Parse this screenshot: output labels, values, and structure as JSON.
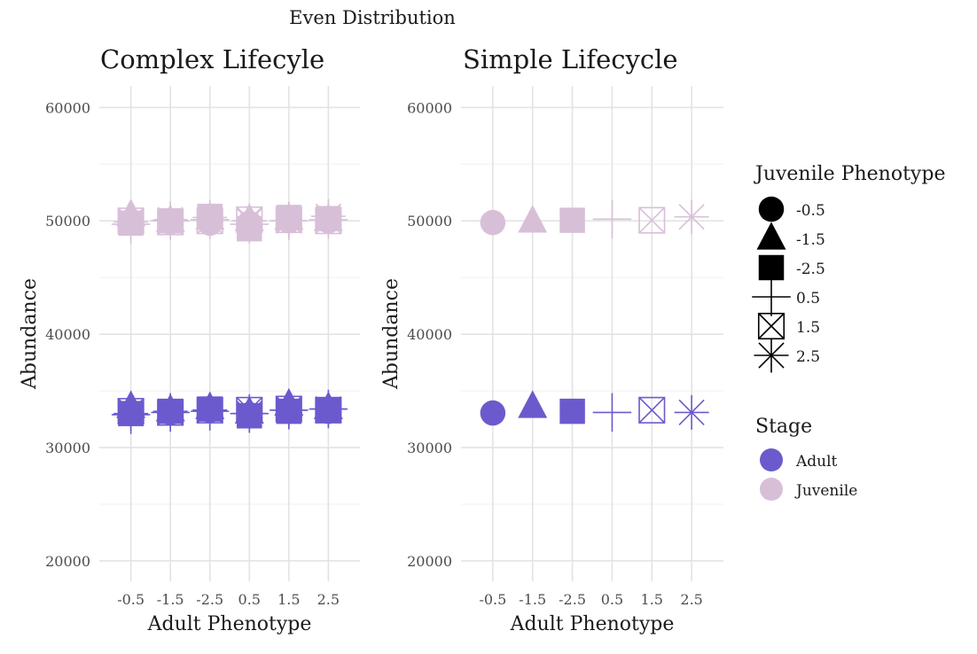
{
  "figure": {
    "title": "Even Distribution"
  },
  "legend": {
    "shape_title": "Juvenile Phenotype",
    "shape_items": [
      {
        "label": "-0.5",
        "shape": "circle"
      },
      {
        "label": "-1.5",
        "shape": "triangle"
      },
      {
        "label": "-2.5",
        "shape": "square"
      },
      {
        "label": "0.5",
        "shape": "plus"
      },
      {
        "label": "1.5",
        "shape": "square-cross"
      },
      {
        "label": "2.5",
        "shape": "asterisk"
      }
    ],
    "color_title": "Stage",
    "color_items": [
      {
        "label": "Adult",
        "color": "#6a5acd"
      },
      {
        "label": "Juvenile",
        "color": "#d8bfd8"
      }
    ]
  },
  "chart_data": [
    {
      "type": "scatter",
      "title": "Complex Lifecyle",
      "xlabel": "Adult Phenotype",
      "ylabel": "Abundance",
      "categories": [
        "-0.5",
        "-1.5",
        "-2.5",
        "0.5",
        "1.5",
        "2.5"
      ],
      "y_ticks": [
        20000,
        30000,
        40000,
        50000,
        60000
      ],
      "y_tick_labels": [
        "20000",
        "30000",
        "40000",
        "50000",
        "60000"
      ],
      "ylim": [
        18200,
        61900
      ],
      "grid": true,
      "note": "Each adult phenotype category has points for all six juvenile phenotypes, overlapping",
      "series": [
        {
          "name": "Juvenile",
          "color": "#d8bfd8",
          "points": [
            {
              "x": "-0.5",
              "shape": "circle",
              "y": 49900
            },
            {
              "x": "-0.5",
              "shape": "triangle",
              "y": 50500
            },
            {
              "x": "-0.5",
              "shape": "square",
              "y": 49800
            },
            {
              "x": "-0.5",
              "shape": "plus",
              "y": 49700
            },
            {
              "x": "-0.5",
              "shape": "square-cross",
              "y": 50000
            },
            {
              "x": "-0.5",
              "shape": "asterisk",
              "y": 49900
            },
            {
              "x": "-1.5",
              "shape": "circle",
              "y": 49900
            },
            {
              "x": "-1.5",
              "shape": "triangle",
              "y": 50000
            },
            {
              "x": "-1.5",
              "shape": "square",
              "y": 50000
            },
            {
              "x": "-1.5",
              "shape": "plus",
              "y": 50000
            },
            {
              "x": "-1.5",
              "shape": "square-cross",
              "y": 49900
            },
            {
              "x": "-1.5",
              "shape": "asterisk",
              "y": 50100
            },
            {
              "x": "-2.5",
              "shape": "circle",
              "y": 49800
            },
            {
              "x": "-2.5",
              "shape": "triangle",
              "y": 50200
            },
            {
              "x": "-2.5",
              "shape": "square",
              "y": 50400
            },
            {
              "x": "-2.5",
              "shape": "plus",
              "y": 50100
            },
            {
              "x": "-2.5",
              "shape": "square-cross",
              "y": 50000
            },
            {
              "x": "-2.5",
              "shape": "asterisk",
              "y": 50300
            },
            {
              "x": "0.5",
              "shape": "circle",
              "y": 49800
            },
            {
              "x": "0.5",
              "shape": "triangle",
              "y": 50100
            },
            {
              "x": "0.5",
              "shape": "square",
              "y": 49300
            },
            {
              "x": "0.5",
              "shape": "plus",
              "y": 49700
            },
            {
              "x": "0.5",
              "shape": "square-cross",
              "y": 50100
            },
            {
              "x": "0.5",
              "shape": "asterisk",
              "y": 50000
            },
            {
              "x": "1.5",
              "shape": "circle",
              "y": 50000
            },
            {
              "x": "1.5",
              "shape": "triangle",
              "y": 50200
            },
            {
              "x": "1.5",
              "shape": "square",
              "y": 50300
            },
            {
              "x": "1.5",
              "shape": "plus",
              "y": 50000
            },
            {
              "x": "1.5",
              "shape": "square-cross",
              "y": 50100
            },
            {
              "x": "1.5",
              "shape": "asterisk",
              "y": 50000
            },
            {
              "x": "2.5",
              "shape": "circle",
              "y": 50000
            },
            {
              "x": "2.5",
              "shape": "triangle",
              "y": 50100
            },
            {
              "x": "2.5",
              "shape": "square",
              "y": 50200
            },
            {
              "x": "2.5",
              "shape": "plus",
              "y": 50100
            },
            {
              "x": "2.5",
              "shape": "square-cross",
              "y": 50000
            },
            {
              "x": "2.5",
              "shape": "asterisk",
              "y": 50400
            }
          ]
        },
        {
          "name": "Adult",
          "color": "#6a5acd",
          "points": [
            {
              "x": "-0.5",
              "shape": "circle",
              "y": 33100
            },
            {
              "x": "-0.5",
              "shape": "triangle",
              "y": 33600
            },
            {
              "x": "-0.5",
              "shape": "square",
              "y": 33000
            },
            {
              "x": "-0.5",
              "shape": "plus",
              "y": 32900
            },
            {
              "x": "-0.5",
              "shape": "square-cross",
              "y": 33200
            },
            {
              "x": "-0.5",
              "shape": "asterisk",
              "y": 33000
            },
            {
              "x": "-1.5",
              "shape": "circle",
              "y": 33100
            },
            {
              "x": "-1.5",
              "shape": "triangle",
              "y": 33300
            },
            {
              "x": "-1.5",
              "shape": "square",
              "y": 33200
            },
            {
              "x": "-1.5",
              "shape": "plus",
              "y": 33100
            },
            {
              "x": "-1.5",
              "shape": "square-cross",
              "y": 33100
            },
            {
              "x": "-1.5",
              "shape": "asterisk",
              "y": 33200
            },
            {
              "x": "-2.5",
              "shape": "circle",
              "y": 33300
            },
            {
              "x": "-2.5",
              "shape": "triangle",
              "y": 33500
            },
            {
              "x": "-2.5",
              "shape": "square",
              "y": 33400
            },
            {
              "x": "-2.5",
              "shape": "plus",
              "y": 33200
            },
            {
              "x": "-2.5",
              "shape": "square-cross",
              "y": 33300
            },
            {
              "x": "-2.5",
              "shape": "asterisk",
              "y": 33300
            },
            {
              "x": "0.5",
              "shape": "circle",
              "y": 32900
            },
            {
              "x": "0.5",
              "shape": "triangle",
              "y": 33100
            },
            {
              "x": "0.5",
              "shape": "square",
              "y": 32800
            },
            {
              "x": "0.5",
              "shape": "plus",
              "y": 33000
            },
            {
              "x": "0.5",
              "shape": "square-cross",
              "y": 33300
            },
            {
              "x": "0.5",
              "shape": "asterisk",
              "y": 33000
            },
            {
              "x": "1.5",
              "shape": "circle",
              "y": 33300
            },
            {
              "x": "1.5",
              "shape": "triangle",
              "y": 33800
            },
            {
              "x": "1.5",
              "shape": "square",
              "y": 33200
            },
            {
              "x": "1.5",
              "shape": "plus",
              "y": 33300
            },
            {
              "x": "1.5",
              "shape": "square-cross",
              "y": 33400
            },
            {
              "x": "1.5",
              "shape": "asterisk",
              "y": 33300
            },
            {
              "x": "2.5",
              "shape": "circle",
              "y": 33200
            },
            {
              "x": "2.5",
              "shape": "triangle",
              "y": 33500
            },
            {
              "x": "2.5",
              "shape": "square",
              "y": 33300
            },
            {
              "x": "2.5",
              "shape": "plus",
              "y": 33400
            },
            {
              "x": "2.5",
              "shape": "square-cross",
              "y": 33300
            },
            {
              "x": "2.5",
              "shape": "asterisk",
              "y": 33400
            }
          ]
        }
      ]
    },
    {
      "type": "scatter",
      "title": "Simple Lifecycle",
      "xlabel": "Adult Phenotype",
      "ylabel": "Abundance",
      "categories": [
        "-0.5",
        "-1.5",
        "-2.5",
        "0.5",
        "1.5",
        "2.5"
      ],
      "y_ticks": [
        20000,
        30000,
        40000,
        50000,
        60000
      ],
      "y_tick_labels": [
        "20000",
        "30000",
        "40000",
        "50000",
        "60000"
      ],
      "ylim": [
        18200,
        61900
      ],
      "grid": true,
      "series": [
        {
          "name": "Juvenile",
          "color": "#d8bfd8",
          "points": [
            {
              "x": "-0.5",
              "shape": "circle",
              "y": 49850
            },
            {
              "x": "-1.5",
              "shape": "triangle",
              "y": 49950
            },
            {
              "x": "-2.5",
              "shape": "square",
              "y": 50050
            },
            {
              "x": "0.5",
              "shape": "plus",
              "y": 50150
            },
            {
              "x": "1.5",
              "shape": "square-cross",
              "y": 50050
            },
            {
              "x": "2.5",
              "shape": "asterisk",
              "y": 50350
            }
          ]
        },
        {
          "name": "Adult",
          "color": "#6a5acd",
          "points": [
            {
              "x": "-0.5",
              "shape": "circle",
              "y": 33050
            },
            {
              "x": "-1.5",
              "shape": "triangle",
              "y": 33600
            },
            {
              "x": "-2.5",
              "shape": "square",
              "y": 33200
            },
            {
              "x": "0.5",
              "shape": "plus",
              "y": 33100
            },
            {
              "x": "1.5",
              "shape": "square-cross",
              "y": 33300
            },
            {
              "x": "2.5",
              "shape": "asterisk",
              "y": 33100
            }
          ]
        }
      ]
    }
  ]
}
